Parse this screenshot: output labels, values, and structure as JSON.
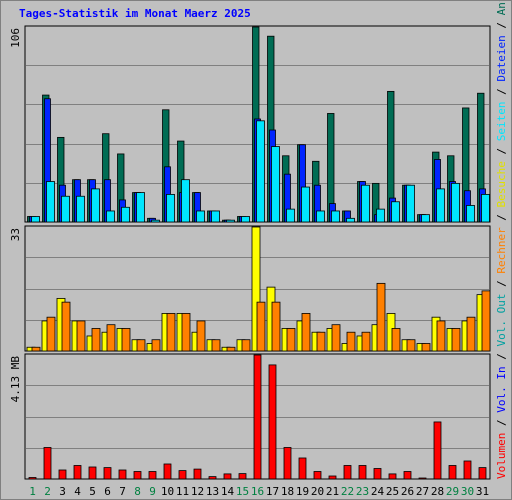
{
  "title": "Tages-Statistik im Monat Maerz 2025",
  "colors": {
    "hits": "#006c54",
    "files": "#0024ff",
    "pages": "#00e6ff",
    "visits": "#ffff00",
    "sites": "#ff8000",
    "kbytes": "#ff0000",
    "weekday_label": "#000000",
    "weekend_label": "#008040"
  },
  "chart_data": [
    {
      "type": "bar",
      "panel": "top",
      "y_tick_label": "106",
      "ylim": [
        0,
        106
      ],
      "categories": [
        "1",
        "2",
        "3",
        "4",
        "5",
        "6",
        "7",
        "8",
        "9",
        "10",
        "11",
        "12",
        "13",
        "14",
        "15",
        "16",
        "17",
        "18",
        "19",
        "20",
        "21",
        "22",
        "23",
        "24",
        "25",
        "26",
        "27",
        "28",
        "29",
        "30",
        "31"
      ],
      "weekend_days": [
        "1",
        "2",
        "8",
        "9",
        "15",
        "16",
        "22",
        "23",
        "29",
        "30"
      ],
      "legend": [
        "Anfragen",
        "Dateien",
        "Seiten"
      ],
      "series": [
        {
          "name": "Anfragen",
          "values": [
            3,
            69,
            46,
            23,
            23,
            48,
            37,
            16,
            2,
            61,
            44,
            16,
            6,
            1,
            3,
            106,
            101,
            36,
            42,
            33,
            59,
            6,
            22,
            21,
            71,
            20,
            4,
            38,
            36,
            62,
            70
          ]
        },
        {
          "name": "Dateien",
          "values": [
            3,
            67,
            20,
            23,
            23,
            23,
            12,
            16,
            2,
            30,
            16,
            16,
            6,
            1,
            3,
            56,
            50,
            26,
            42,
            20,
            10,
            6,
            22,
            4,
            13,
            20,
            4,
            34,
            22,
            17,
            18
          ]
        },
        {
          "name": "Seiten",
          "values": [
            3,
            22,
            14,
            14,
            18,
            6,
            8,
            16,
            1,
            15,
            23,
            6,
            6,
            1,
            3,
            55,
            41,
            7,
            19,
            6,
            6,
            2,
            20,
            7,
            11,
            20,
            4,
            18,
            21,
            9,
            15
          ]
        }
      ]
    },
    {
      "type": "bar",
      "panel": "middle",
      "y_tick_label": "33",
      "ylim": [
        0,
        33
      ],
      "categories": [
        "1",
        "2",
        "3",
        "4",
        "5",
        "6",
        "7",
        "8",
        "9",
        "10",
        "11",
        "12",
        "13",
        "14",
        "15",
        "16",
        "17",
        "18",
        "19",
        "20",
        "21",
        "22",
        "23",
        "24",
        "25",
        "26",
        "27",
        "28",
        "29",
        "30",
        "31"
      ],
      "legend": [
        "Besuche",
        "Rechner"
      ],
      "series": [
        {
          "name": "Besuche",
          "values": [
            1,
            8,
            14,
            8,
            4,
            5,
            6,
            3,
            2,
            10,
            10,
            5,
            3,
            1,
            3,
            33,
            17,
            6,
            8,
            5,
            6,
            2,
            4,
            7,
            10,
            3,
            2,
            9,
            6,
            8,
            15
          ]
        },
        {
          "name": "Rechner",
          "values": [
            1,
            9,
            13,
            8,
            6,
            7,
            6,
            3,
            3,
            10,
            10,
            8,
            3,
            1,
            3,
            13,
            13,
            6,
            10,
            5,
            7,
            5,
            5,
            18,
            6,
            3,
            2,
            8,
            6,
            9,
            16
          ]
        }
      ]
    },
    {
      "type": "bar",
      "panel": "bottom",
      "y_tick_label": "4.13 MB",
      "ylim": [
        0,
        4.13
      ],
      "unit": "MB",
      "categories": [
        "1",
        "2",
        "3",
        "4",
        "5",
        "6",
        "7",
        "8",
        "9",
        "10",
        "11",
        "12",
        "13",
        "14",
        "15",
        "16",
        "17",
        "18",
        "19",
        "20",
        "21",
        "22",
        "23",
        "24",
        "25",
        "26",
        "27",
        "28",
        "29",
        "30",
        "31"
      ],
      "legend": [
        "Volumen",
        "Vol. In",
        "Vol. Out"
      ],
      "series": [
        {
          "name": "Volumen",
          "values": [
            0.05,
            1.05,
            0.3,
            0.45,
            0.4,
            0.38,
            0.3,
            0.25,
            0.25,
            0.5,
            0.28,
            0.33,
            0.08,
            0.17,
            0.18,
            4.13,
            3.8,
            1.05,
            0.7,
            0.25,
            0.1,
            0.45,
            0.45,
            0.35,
            0.17,
            0.25,
            0.02,
            1.9,
            0.45,
            0.6,
            0.38
          ]
        }
      ]
    }
  ],
  "legend_right": {
    "top": [
      {
        "text": "Anfragen",
        "color": "#006c54"
      },
      {
        "text": "/",
        "color": "#000000"
      },
      {
        "text": "Dateien",
        "color": "#0024ff"
      },
      {
        "text": "/",
        "color": "#000000"
      },
      {
        "text": "Seiten",
        "color": "#00e6ff"
      },
      {
        "text": "/",
        "color": "#000000"
      },
      {
        "text": "Besuche",
        "color": "#e0e000"
      },
      {
        "text": "/",
        "color": "#000000"
      },
      {
        "text": "Rechner",
        "color": "#ff8000"
      },
      {
        "text": "/",
        "color": "#000000"
      },
      {
        "text": "Vol. Out",
        "color": "#00a0a0"
      },
      {
        "text": "/",
        "color": "#000000"
      },
      {
        "text": "Vol. In",
        "color": "#0000ff"
      },
      {
        "text": "/",
        "color": "#000000"
      },
      {
        "text": "Volumen",
        "color": "#ff0000"
      }
    ]
  }
}
